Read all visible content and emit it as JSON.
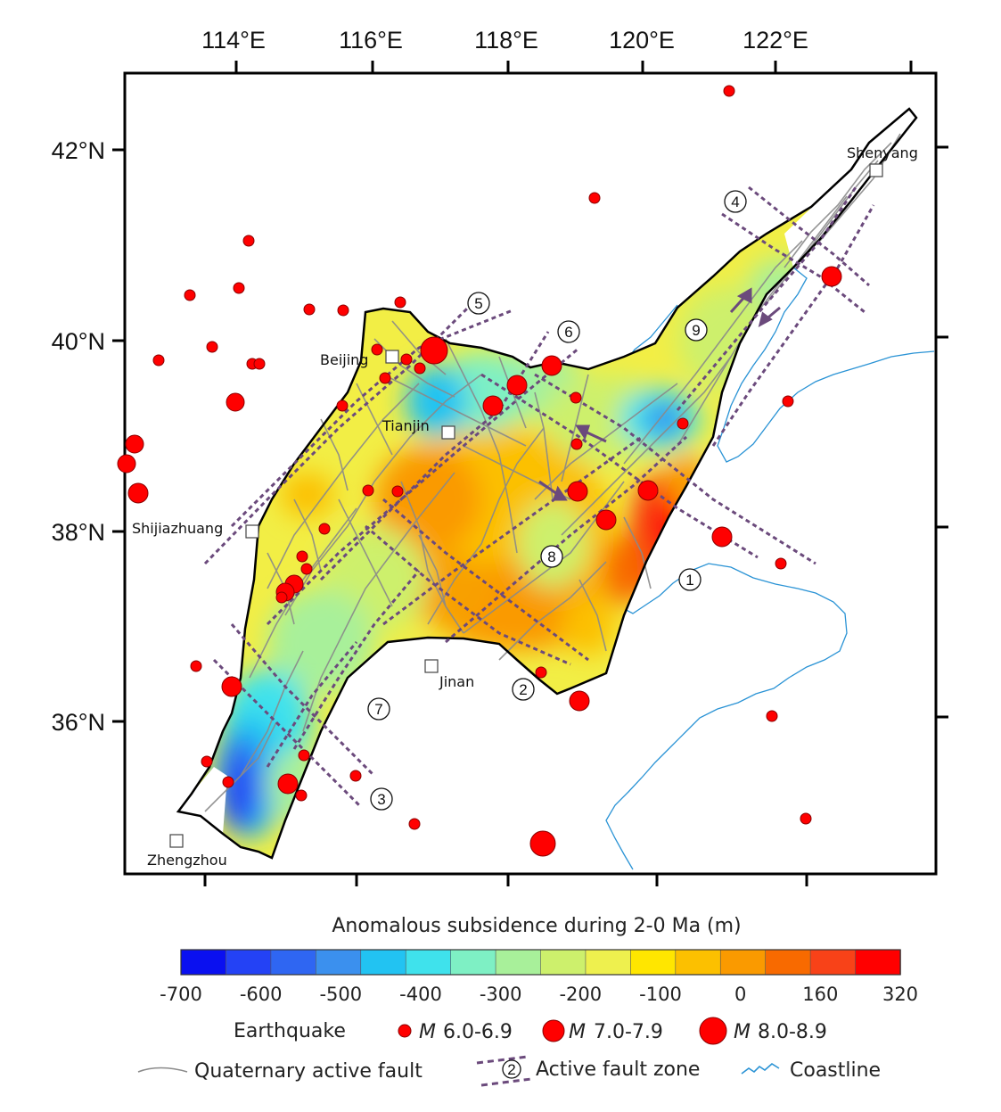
{
  "map": {
    "lon_ticks": [
      "114°E",
      "116°E",
      "118°E",
      "120°E",
      "122°E"
    ],
    "lat_ticks": [
      "42°N",
      "40°N",
      "38°N",
      "36°N"
    ],
    "cities": [
      {
        "name": "Shenyang"
      },
      {
        "name": "Beijing"
      },
      {
        "name": "Tianjin"
      },
      {
        "name": "Shijiazhuang"
      },
      {
        "name": "Jinan"
      },
      {
        "name": "Zhengzhou"
      }
    ],
    "fault_zone_numbers": [
      "1",
      "2",
      "3",
      "4",
      "5",
      "6",
      "7",
      "8",
      "9"
    ]
  },
  "legend": {
    "colorbar_title": "Anomalous subsidence  during 2-0 Ma (m)",
    "colorbar_ticks": [
      "-700",
      "-600",
      "-500",
      "-400",
      "-300",
      "-200",
      "-100",
      "0",
      "160",
      "320"
    ],
    "colorbar_colors": [
      "#0a10f0",
      "#2442f5",
      "#2f66f2",
      "#3b90ee",
      "#22c3f2",
      "#3fe2ec",
      "#7ef0c4",
      "#a8f09a",
      "#cdf06c",
      "#eef04e",
      "#ffe600",
      "#fcc000",
      "#fa9a00",
      "#f86a00",
      "#f84218",
      "#ff0000"
    ],
    "earthquake_label": "Earthquake",
    "m_prefix": "M",
    "eq_classes": [
      "6.0-6.9",
      "7.0-7.9",
      "8.0-8.9"
    ],
    "fault_label": "Quaternary active fault",
    "fault_zone_label": "Active fault zone",
    "fault_zone_number": "2",
    "coastline_label": "Coastline"
  },
  "colors": {
    "earthquake": "#ff0000",
    "fault": "#8a8a8a",
    "fault_zone": "#6b4a7c",
    "coastline": "#2a93d5"
  }
}
